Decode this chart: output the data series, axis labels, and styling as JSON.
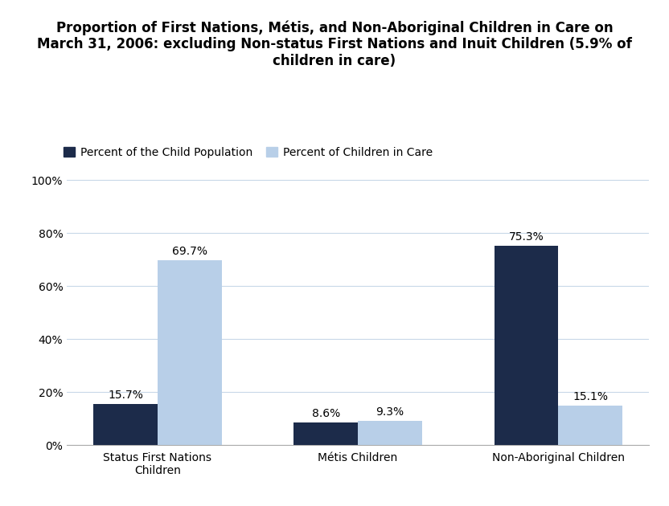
{
  "title": "Proportion of First Nations, Métis, and Non-Aboriginal Children in Care on\nMarch 31, 2006: excluding Non-status First Nations and Inuit Children (5.9% of\nchildren in care)",
  "categories": [
    "Status First Nations\nChildren",
    "Métis Children",
    "Non-Aboriginal Children"
  ],
  "series1_label": "Percent of the Child Population",
  "series2_label": "Percent of Children in Care",
  "series1_values": [
    15.7,
    8.6,
    75.3
  ],
  "series2_values": [
    69.7,
    9.3,
    15.1
  ],
  "series1_color": "#1c2b4a",
  "series2_color": "#b8cfe8",
  "bar_width": 0.32,
  "ylim": [
    0,
    105
  ],
  "yticks": [
    0,
    20,
    40,
    60,
    80,
    100
  ],
  "ytick_labels": [
    "0%",
    "20%",
    "40%",
    "60%",
    "80%",
    "100%"
  ],
  "label_fontsize": 10,
  "title_fontsize": 12,
  "tick_fontsize": 10,
  "legend_fontsize": 10,
  "background_color": "#ffffff",
  "grid_color": "#c8d8e8"
}
